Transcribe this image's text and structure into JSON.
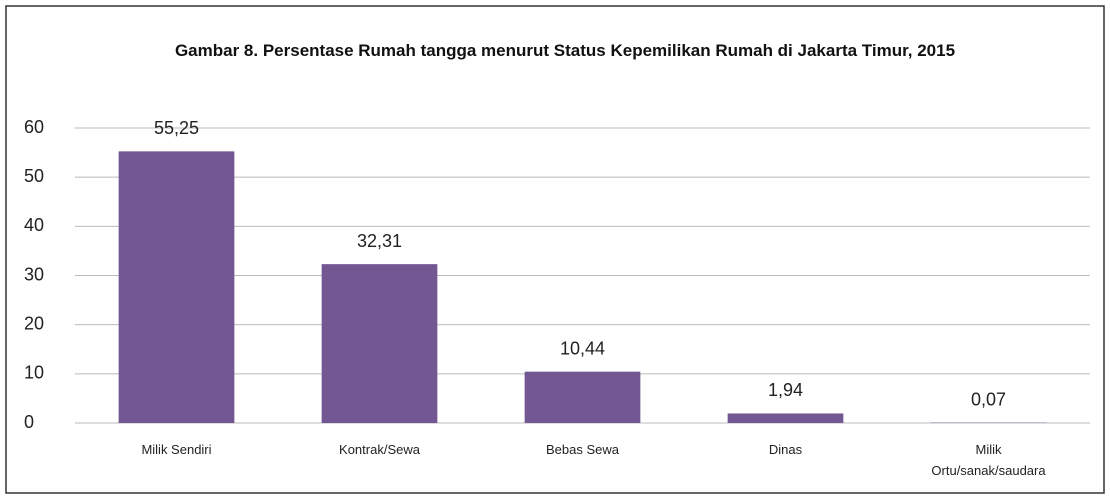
{
  "chart_data": {
    "type": "bar",
    "title": "Gambar 8. Persentase Rumah tangga menurut Status Kepemilikan Rumah di Jakarta Timur, 2015",
    "categories": [
      "Milik Sendiri",
      "Kontrak/Sewa",
      "Bebas Sewa",
      "Dinas",
      "Milik Ortu/sanak/saudara"
    ],
    "values": [
      55.25,
      32.31,
      10.44,
      1.94,
      0.07
    ],
    "value_labels": [
      "55,25",
      "32,31",
      "10,44",
      "1,94",
      "0,07"
    ],
    "color": "#735792",
    "ylim": [
      0,
      60
    ],
    "yticks": [
      0,
      10,
      20,
      30,
      40,
      50,
      60
    ],
    "grid": true
  }
}
